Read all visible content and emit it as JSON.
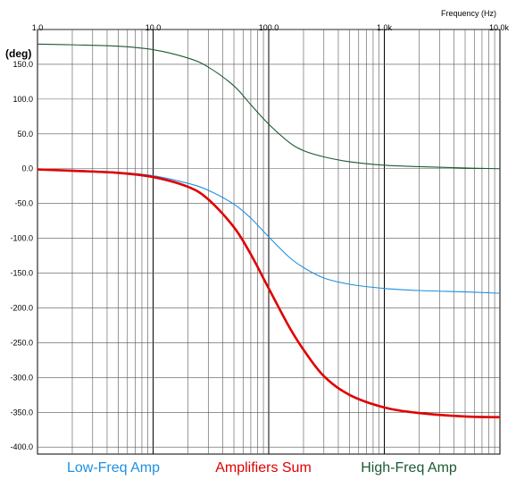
{
  "chart_data": {
    "type": "line",
    "xlabel": "Frequency  (Hz)",
    "ylabel": "(deg)",
    "x_scale": "log",
    "xlim": [
      1,
      10000
    ],
    "ylim": [
      -410,
      200
    ],
    "grid": true,
    "legend_position": "bottom",
    "x_tick_labels": [
      "1.0",
      "10.0",
      "100.0",
      "1.0k",
      "10.0k"
    ],
    "y_tick_labels": [
      "150.0",
      "100.0",
      "50.0",
      "0.0",
      "-50.0",
      "-100.0",
      "-150.0",
      "-200.0",
      "-250.0",
      "-300.0",
      "-350.0",
      "-400.0"
    ],
    "x": [
      1,
      2,
      5,
      10,
      20,
      30,
      50,
      70,
      100,
      150,
      200,
      300,
      500,
      1000,
      2000,
      5000,
      10000
    ],
    "series": [
      {
        "name": "Low-Freq Amp",
        "color": "#1e90e0",
        "values": [
          -1,
          -2,
          -5,
          -10,
          -21,
          -31,
          -51,
          -71,
          -98,
          -127,
          -142,
          -157,
          -166,
          -172,
          -175,
          -177,
          -179
        ]
      },
      {
        "name": "Amplifiers Sum",
        "color": "#e00000",
        "values": [
          -1,
          -3,
          -6,
          -12,
          -26,
          -44,
          -84,
          -123,
          -172,
          -227,
          -260,
          -298,
          -325,
          -343,
          -351,
          -356,
          -357
        ]
      },
      {
        "name": "High-Freq Amp",
        "color": "#1b5a33",
        "values": [
          179,
          178,
          176,
          171,
          159,
          146,
          119,
          92,
          64,
          38,
          26,
          17,
          10,
          5,
          3,
          1,
          0
        ]
      }
    ]
  }
}
